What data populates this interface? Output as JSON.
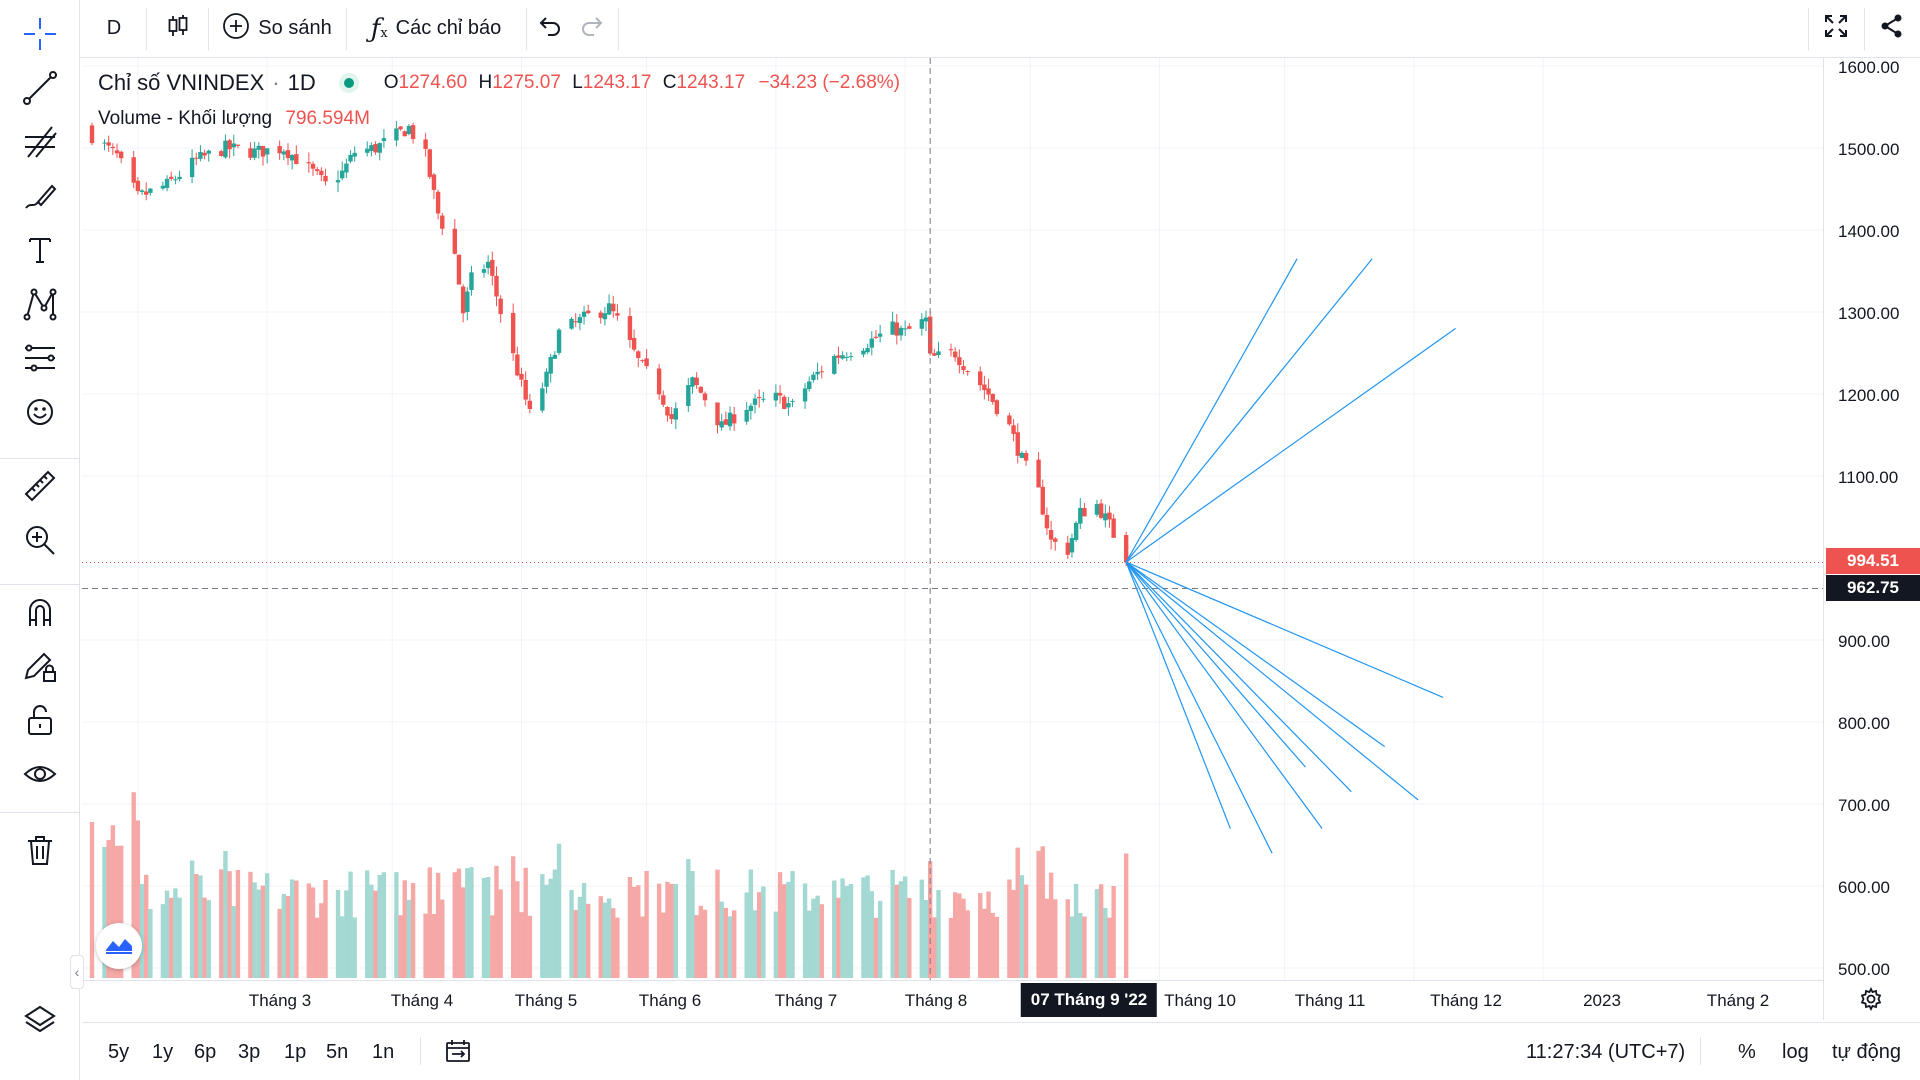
{
  "toolbar": {
    "interval": "D",
    "compare_label": "So sánh",
    "indicators_label": "Các chỉ báo"
  },
  "legend": {
    "title": "Chỉ số VNINDEX",
    "interval": "1D",
    "open_label": "O",
    "open": "1274.60",
    "high_label": "H",
    "high": "1275.07",
    "low_label": "L",
    "low": "1243.17",
    "close_label": "C",
    "close": "1243.17",
    "change": "−34.23 (−2.68%)",
    "volume_label": "Volume - Khối lượng",
    "volume_value": "796.594M"
  },
  "price_axis": {
    "ticks": [
      "1600.00",
      "1500.00",
      "1400.00",
      "1300.00",
      "1200.00",
      "1100.00",
      "900.00",
      "800.00",
      "700.00",
      "600.00",
      "500.00"
    ],
    "last_price": "994.51",
    "crosshair_price": "962.75"
  },
  "time_axis": {
    "ticks": [
      "Tháng 3",
      "Tháng 4",
      "Tháng 5",
      "Tháng 6",
      "Tháng 7",
      "Tháng 8",
      "Tháng 10",
      "Tháng 11",
      "Tháng 12",
      "2023",
      "Tháng 2"
    ],
    "crosshair_date": "07 Tháng 9 '22"
  },
  "bottom": {
    "ranges": [
      "5y",
      "1y",
      "6p",
      "3p",
      "1p",
      "5n",
      "1n"
    ],
    "time": "11:27:34 (UTC+7)",
    "percent": "%",
    "log": "log",
    "auto": "tự động"
  },
  "colors": {
    "up": "#26a69a",
    "down": "#ef5350",
    "fan": "#2196f3",
    "accent": "#2962ff"
  },
  "chart_data": {
    "type": "candlestick",
    "symbol": "VNINDEX",
    "period": "1D",
    "ylim": [
      480,
      1620
    ],
    "price_ticks": [
      1600,
      1500,
      1400,
      1300,
      1200,
      1100,
      900,
      800,
      700,
      600,
      500
    ],
    "last_price": 994.51,
    "crosshair_price": 962.75,
    "anchors": [
      {
        "date": "2022-02-18",
        "close": 1515
      },
      {
        "date": "2022-02-24",
        "close": 1490
      },
      {
        "date": "2022-03-01",
        "close": 1440
      },
      {
        "date": "2022-03-08",
        "close": 1455
      },
      {
        "date": "2022-03-15",
        "close": 1485
      },
      {
        "date": "2022-03-22",
        "close": 1500
      },
      {
        "date": "2022-03-29",
        "close": 1495
      },
      {
        "date": "2022-04-05",
        "close": 1500
      },
      {
        "date": "2022-04-12",
        "close": 1470
      },
      {
        "date": "2022-04-15",
        "close": 1455
      },
      {
        "date": "2022-04-19",
        "close": 1470
      },
      {
        "date": "2022-04-22",
        "close": 1495
      },
      {
        "date": "2022-04-27",
        "close": 1500
      },
      {
        "date": "2022-05-05",
        "close": 1525
      },
      {
        "date": "2022-05-09",
        "close": 1490
      },
      {
        "date": "2022-05-12",
        "close": 1420
      },
      {
        "date": "2022-05-16",
        "close": 1370
      },
      {
        "date": "2022-05-18",
        "close": 1300
      },
      {
        "date": "2022-05-20",
        "close": 1340
      },
      {
        "date": "2022-05-24",
        "close": 1360
      },
      {
        "date": "2022-05-27",
        "close": 1300
      },
      {
        "date": "2022-06-01",
        "close": 1210
      },
      {
        "date": "2022-06-03",
        "close": 1175
      },
      {
        "date": "2022-06-07",
        "close": 1220
      },
      {
        "date": "2022-06-10",
        "close": 1275
      },
      {
        "date": "2022-06-17",
        "close": 1295
      },
      {
        "date": "2022-06-22",
        "close": 1305
      },
      {
        "date": "2022-06-24",
        "close": 1290
      },
      {
        "date": "2022-06-29",
        "close": 1240
      },
      {
        "date": "2022-07-04",
        "close": 1205
      },
      {
        "date": "2022-07-07",
        "close": 1170
      },
      {
        "date": "2022-07-12",
        "close": 1215
      },
      {
        "date": "2022-07-15",
        "close": 1195
      },
      {
        "date": "2022-07-19",
        "close": 1160
      },
      {
        "date": "2022-07-25",
        "close": 1185
      },
      {
        "date": "2022-08-01",
        "close": 1195
      },
      {
        "date": "2022-08-05",
        "close": 1185
      },
      {
        "date": "2022-08-09",
        "close": 1215
      },
      {
        "date": "2022-08-15",
        "close": 1245
      },
      {
        "date": "2022-08-22",
        "close": 1260
      },
      {
        "date": "2022-08-29",
        "close": 1280
      },
      {
        "date": "2022-09-01",
        "close": 1275
      },
      {
        "date": "2022-09-06",
        "close": 1290
      },
      {
        "date": "2022-09-07",
        "close": 1243.17
      },
      {
        "date": "2022-09-13",
        "close": 1250
      },
      {
        "date": "2022-09-16",
        "close": 1230
      },
      {
        "date": "2022-09-21",
        "close": 1200
      },
      {
        "date": "2022-09-26",
        "close": 1160
      },
      {
        "date": "2022-09-29",
        "close": 1120
      },
      {
        "date": "2022-10-03",
        "close": 1080
      },
      {
        "date": "2022-10-06",
        "close": 1020
      },
      {
        "date": "2022-10-10",
        "close": 1010
      },
      {
        "date": "2022-10-13",
        "close": 1055
      },
      {
        "date": "2022-10-17",
        "close": 1065
      },
      {
        "date": "2022-10-20",
        "close": 1040
      },
      {
        "date": "2022-10-24",
        "close": 994.51
      }
    ],
    "fan_lines": {
      "origin": {
        "date": "2022-10-24",
        "price": 995
      },
      "endpoints": [
        {
          "date": "2022-12-04",
          "price": 1365
        },
        {
          "date": "2022-12-22",
          "price": 1365
        },
        {
          "date": "2023-01-11",
          "price": 1280
        },
        {
          "date": "2023-01-08",
          "price": 830
        },
        {
          "date": "2022-12-25",
          "price": 770
        },
        {
          "date": "2023-01-02",
          "price": 705
        },
        {
          "date": "2022-12-17",
          "price": 715
        },
        {
          "date": "2022-12-10",
          "price": 670
        },
        {
          "date": "2022-12-06",
          "price": 745
        },
        {
          "date": "2022-11-28",
          "price": 640
        },
        {
          "date": "2022-11-18",
          "price": 670
        }
      ]
    }
  }
}
